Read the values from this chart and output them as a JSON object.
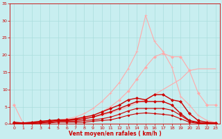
{
  "x": [
    0,
    1,
    2,
    3,
    4,
    5,
    6,
    7,
    8,
    9,
    10,
    11,
    12,
    13,
    14,
    15,
    16,
    17,
    18,
    19,
    20,
    21,
    22,
    23
  ],
  "series": [
    {
      "values": [
        0.0,
        0.0,
        0.2,
        0.4,
        0.6,
        0.8,
        1.0,
        1.2,
        1.5,
        2.0,
        2.5,
        3.2,
        4.0,
        5.0,
        6.0,
        7.0,
        8.5,
        10.0,
        11.5,
        13.0,
        15.5,
        16.0,
        16.0,
        16.0
      ],
      "color": "#ffaaaa",
      "linewidth": 0.8,
      "marker": null,
      "markersize": 0
    },
    {
      "values": [
        5.5,
        0.3,
        0.3,
        0.5,
        0.8,
        1.0,
        1.2,
        1.5,
        1.8,
        2.5,
        3.5,
        5.0,
        7.0,
        9.5,
        13.0,
        16.5,
        19.5,
        20.5,
        19.5,
        19.5,
        15.5,
        9.0,
        5.5,
        5.5
      ],
      "color": "#ffaaaa",
      "linewidth": 0.8,
      "marker": "D",
      "markersize": 2.0
    },
    {
      "values": [
        0.0,
        0.0,
        0.3,
        0.5,
        0.8,
        1.0,
        1.5,
        2.0,
        3.0,
        4.5,
        6.5,
        9.0,
        12.0,
        16.0,
        21.0,
        31.5,
        24.0,
        21.0,
        16.5,
        8.0,
        5.5,
        2.5,
        1.0,
        0.5
      ],
      "color": "#ffaaaa",
      "linewidth": 0.8,
      "marker": "+",
      "markersize": 3.0
    },
    {
      "values": [
        0.5,
        0.3,
        0.5,
        0.8,
        1.0,
        1.2,
        1.2,
        1.5,
        2.0,
        2.5,
        3.5,
        4.5,
        5.5,
        7.0,
        7.5,
        7.0,
        8.5,
        8.5,
        7.0,
        6.5,
        3.0,
        1.0,
        0.5,
        0.3
      ],
      "color": "#cc0000",
      "linewidth": 1.0,
      "marker": "D",
      "markersize": 2.0
    },
    {
      "values": [
        0.3,
        0.2,
        0.3,
        0.5,
        0.8,
        1.0,
        1.0,
        1.2,
        1.5,
        2.0,
        2.8,
        3.5,
        4.5,
        5.5,
        6.5,
        6.5,
        6.5,
        6.5,
        5.5,
        3.0,
        1.0,
        0.5,
        0.2,
        0.2
      ],
      "color": "#cc0000",
      "linewidth": 1.0,
      "marker": "D",
      "markersize": 2.0
    },
    {
      "values": [
        0.2,
        0.2,
        0.2,
        0.3,
        0.5,
        0.8,
        0.8,
        0.8,
        1.0,
        1.2,
        1.5,
        2.0,
        2.8,
        3.8,
        4.5,
        4.5,
        4.5,
        4.5,
        4.0,
        2.5,
        0.8,
        0.3,
        0.2,
        0.2
      ],
      "color": "#cc0000",
      "linewidth": 0.8,
      "marker": "D",
      "markersize": 1.5
    },
    {
      "values": [
        0.2,
        0.2,
        0.2,
        0.3,
        0.3,
        0.5,
        0.5,
        0.5,
        0.5,
        0.8,
        1.0,
        1.2,
        1.8,
        2.5,
        3.0,
        3.2,
        3.0,
        2.8,
        2.5,
        1.5,
        0.5,
        0.2,
        0.2,
        0.2
      ],
      "color": "#cc0000",
      "linewidth": 0.8,
      "marker": "D",
      "markersize": 1.5
    }
  ],
  "xlabel": "Vent moyen/en rafales ( km/h )",
  "xlim": [
    -0.5,
    23.5
  ],
  "ylim": [
    0,
    35
  ],
  "yticks": [
    0,
    5,
    10,
    15,
    20,
    25,
    30,
    35
  ],
  "xticks": [
    0,
    1,
    2,
    3,
    4,
    5,
    6,
    7,
    8,
    9,
    10,
    11,
    12,
    13,
    14,
    15,
    16,
    17,
    18,
    19,
    20,
    21,
    22,
    23
  ],
  "bg_color": "#c8eef0",
  "grid_color": "#aadddd",
  "tick_color": "#cc0000",
  "label_color": "#cc0000",
  "axis_line_color": "#cc0000"
}
